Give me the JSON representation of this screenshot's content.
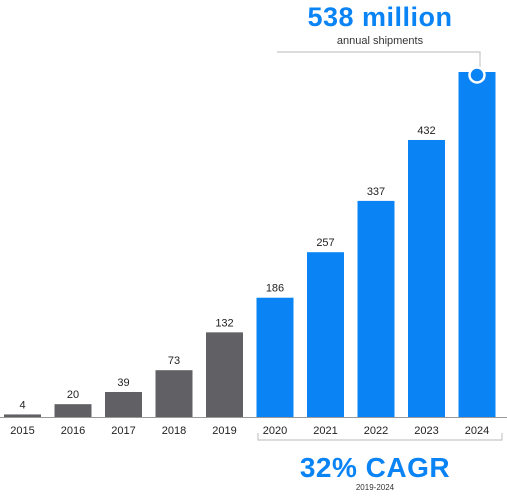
{
  "colors": {
    "historical": "#616165",
    "forecast": "#0A84F5",
    "text": "#222222",
    "axis": "#9a9a9a",
    "bracket": "#c8c8c8"
  },
  "headline": {
    "value": "538 million",
    "caption": "annual shipments"
  },
  "footer": {
    "value": "32% CAGR",
    "caption": "2019-2024"
  },
  "chart_data": {
    "type": "bar",
    "categories": [
      "2015",
      "2016",
      "2017",
      "2018",
      "2019",
      "2020",
      "2021",
      "2022",
      "2023",
      "2024"
    ],
    "values": [
      4,
      20,
      39,
      73,
      132,
      186,
      257,
      337,
      432,
      538
    ],
    "data_labels": [
      "4",
      "20",
      "39",
      "73",
      "132",
      "186",
      "257",
      "337",
      "432",
      ""
    ],
    "historical_count": 5,
    "ylim": [
      0,
      538
    ],
    "title": "",
    "xlabel": "",
    "ylabel": "",
    "grid": false,
    "legend": "none"
  }
}
